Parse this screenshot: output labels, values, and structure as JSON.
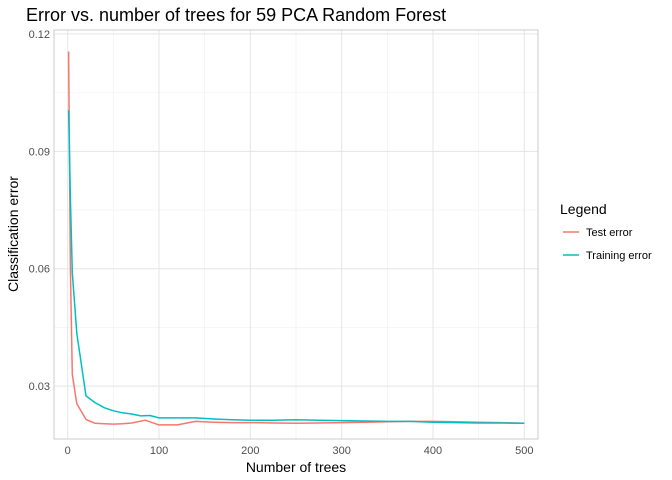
{
  "chart_data": {
    "type": "line",
    "title": "Error vs. number of trees for 59 PCA Random Forest",
    "xlabel": "Number of trees",
    "ylabel": "Classification error",
    "xlim": [
      -15,
      515
    ],
    "ylim": [
      0.0165,
      0.121
    ],
    "x_ticks": [
      0,
      100,
      200,
      300,
      400,
      500
    ],
    "x_tick_labels": [
      "0",
      "100",
      "200",
      "300",
      "400",
      "500"
    ],
    "y_ticks": [
      0.03,
      0.06,
      0.09,
      0.12
    ],
    "y_tick_labels": [
      "0.03",
      "0.06",
      "0.09",
      "0.12"
    ],
    "grid": true,
    "legend_title": "Legend",
    "legend_position": "right",
    "colors": {
      "test": "#F8766D",
      "train": "#00BFC4"
    },
    "series": [
      {
        "name": "Test error",
        "color": "#F8766D",
        "x": [
          1,
          3,
          5,
          10,
          20,
          30,
          40,
          50,
          60,
          70,
          85,
          100,
          120,
          140,
          160,
          180,
          200,
          225,
          250,
          275,
          300,
          325,
          350,
          375,
          400,
          425,
          450,
          475,
          500
        ],
        "y": [
          0.1155,
          0.06,
          0.033,
          0.0255,
          0.0215,
          0.0205,
          0.0204,
          0.0203,
          0.0204,
          0.0206,
          0.0213,
          0.0201,
          0.0201,
          0.021,
          0.0208,
          0.0207,
          0.0207,
          0.0206,
          0.0205,
          0.0206,
          0.0207,
          0.0208,
          0.0209,
          0.021,
          0.021,
          0.0209,
          0.0208,
          0.0207,
          0.0205
        ]
      },
      {
        "name": "Training error",
        "color": "#00BFC4",
        "x": [
          1,
          3,
          5,
          10,
          20,
          30,
          40,
          50,
          60,
          70,
          80,
          90,
          100,
          120,
          140,
          160,
          180,
          200,
          225,
          250,
          275,
          300,
          325,
          350,
          375,
          400,
          425,
          450,
          475,
          500
        ],
        "y": [
          0.1005,
          0.078,
          0.059,
          0.0435,
          0.0275,
          0.0258,
          0.0245,
          0.0237,
          0.0232,
          0.0229,
          0.0224,
          0.0225,
          0.0219,
          0.0219,
          0.0219,
          0.0216,
          0.0214,
          0.0213,
          0.0213,
          0.0214,
          0.0213,
          0.0212,
          0.0211,
          0.021,
          0.021,
          0.0208,
          0.0207,
          0.0206,
          0.0206,
          0.0205
        ]
      }
    ]
  }
}
